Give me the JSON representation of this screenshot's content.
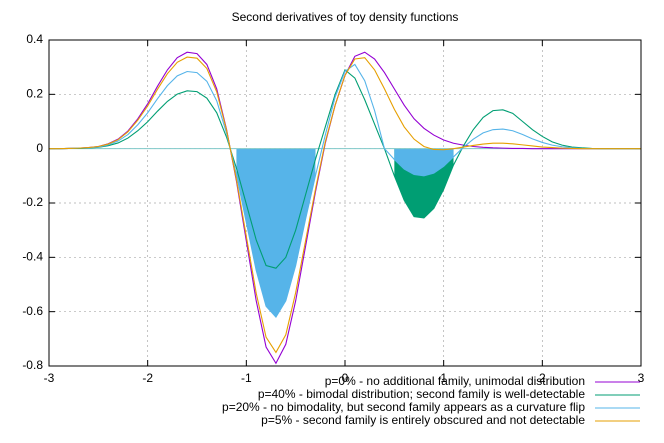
{
  "chart_data": {
    "type": "line",
    "title": "Second derivatives of toy density functions",
    "x": [
      -3,
      -2.9,
      -2.8,
      -2.7,
      -2.6,
      -2.5,
      -2.4,
      -2.3,
      -2.2,
      -2.1,
      -2,
      -1.9,
      -1.8,
      -1.7,
      -1.6,
      -1.5,
      -1.4,
      -1.3,
      -1.2,
      -1.1,
      -1,
      -0.9,
      -0.8,
      -0.7,
      -0.6,
      -0.5,
      -0.4,
      -0.3,
      -0.2,
      -0.1,
      0,
      0.1,
      0.2,
      0.3,
      0.4,
      0.5,
      0.6,
      0.7,
      0.8,
      0.9,
      1,
      1.1,
      1.2,
      1.3,
      1.4,
      1.5,
      1.6,
      1.7,
      1.8,
      1.9,
      2,
      2.1,
      2.2,
      2.3,
      2.4,
      2.5,
      2.6,
      2.7,
      2.8,
      2.9,
      3
    ],
    "series": [
      {
        "name": "p=0% - no additional family, unimodal distribution",
        "color": "#9400d3",
        "fill": false,
        "values": [
          0,
          0,
          0.001,
          0.002,
          0.004,
          0.008,
          0.018,
          0.035,
          0.065,
          0.11,
          0.165,
          0.23,
          0.29,
          0.335,
          0.355,
          0.35,
          0.31,
          0.22,
          0.07,
          -0.12,
          -0.34,
          -0.56,
          -0.73,
          -0.79,
          -0.72,
          -0.56,
          -0.36,
          -0.16,
          0.02,
          0.16,
          0.27,
          0.34,
          0.355,
          0.33,
          0.28,
          0.22,
          0.16,
          0.11,
          0.075,
          0.05,
          0.032,
          0.02,
          0.013,
          0.008,
          0.005,
          0.003,
          0.002,
          0.001,
          0.001,
          0,
          0,
          0,
          0,
          0,
          0,
          0,
          0,
          0,
          0,
          0,
          0
        ]
      },
      {
        "name": "p=40% - bimodal distribution; second family is well-detectable",
        "color": "#009e73",
        "fill": true,
        "values": [
          0,
          0,
          0.001,
          0.001,
          0.002,
          0.005,
          0.011,
          0.021,
          0.039,
          0.066,
          0.099,
          0.138,
          0.174,
          0.201,
          0.213,
          0.21,
          0.186,
          0.132,
          0.042,
          -0.072,
          -0.204,
          -0.336,
          -0.43,
          -0.44,
          -0.4,
          -0.3,
          -0.17,
          -0.04,
          0.08,
          0.2,
          0.29,
          0.26,
          0.18,
          0.09,
          0,
          -0.1,
          -0.19,
          -0.25,
          -0.255,
          -0.22,
          -0.15,
          -0.06,
          0.01,
          0.07,
          0.115,
          0.14,
          0.143,
          0.13,
          0.1,
          0.07,
          0.045,
          0.025,
          0.013,
          0.006,
          0.003,
          0.001,
          0,
          0,
          0,
          0,
          0
        ]
      },
      {
        "name": "p=20% - no bimodality, but second family appears as a curvature flip",
        "color": "#56b4e9",
        "fill": true,
        "values": [
          0,
          0,
          0.001,
          0.002,
          0.003,
          0.006,
          0.014,
          0.028,
          0.052,
          0.088,
          0.132,
          0.184,
          0.232,
          0.268,
          0.284,
          0.28,
          0.248,
          0.176,
          0.056,
          -0.096,
          -0.272,
          -0.448,
          -0.58,
          -0.62,
          -0.56,
          -0.43,
          -0.26,
          -0.1,
          0.05,
          0.19,
          0.285,
          0.31,
          0.25,
          0.14,
          0,
          -0.04,
          -0.075,
          -0.095,
          -0.1,
          -0.09,
          -0.065,
          -0.03,
          0.005,
          0.035,
          0.058,
          0.07,
          0.072,
          0.066,
          0.052,
          0.036,
          0.023,
          0.013,
          0.007,
          0.003,
          0.001,
          0,
          0,
          0,
          0,
          0,
          0
        ]
      },
      {
        "name": "p=5% - second family is entirely obscured and not detectable",
        "color": "#e69f00",
        "fill": false,
        "values": [
          0,
          0,
          0.001,
          0.002,
          0.004,
          0.008,
          0.017,
          0.033,
          0.062,
          0.105,
          0.157,
          0.219,
          0.276,
          0.318,
          0.337,
          0.333,
          0.295,
          0.209,
          0.067,
          -0.114,
          -0.323,
          -0.532,
          -0.694,
          -0.75,
          -0.685,
          -0.53,
          -0.34,
          -0.15,
          0.025,
          0.16,
          0.27,
          0.33,
          0.335,
          0.29,
          0.22,
          0.145,
          0.08,
          0.035,
          0.008,
          -0.003,
          -0.004,
          0,
          0.006,
          0.012,
          0.017,
          0.02,
          0.02,
          0.018,
          0.014,
          0.01,
          0.006,
          0.004,
          0.002,
          0.001,
          0,
          0,
          0,
          0,
          0,
          0,
          0
        ]
      }
    ],
    "xlim": [
      -3,
      3
    ],
    "ylim": [
      -0.8,
      0.4
    ],
    "xticks": [
      -3,
      -2,
      -1,
      0,
      1,
      2,
      3
    ],
    "yticks": [
      0.4,
      0.2,
      0,
      -0.2,
      -0.4,
      -0.6,
      -0.8
    ],
    "grid": true
  }
}
